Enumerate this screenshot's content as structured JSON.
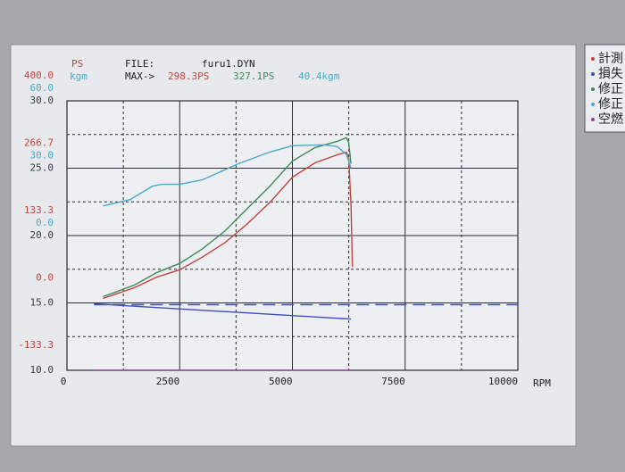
{
  "chart_data": {
    "type": "line",
    "ylabel": "PS",
    "ycolor": "#c0443f",
    "ylim": [
      -133.3,
      400
    ],
    "yticks": [
      {
        "value": 400,
        "label": "400.0"
      },
      266.7,
      133.3,
      {
        "value": 0,
        "label": "0.0"
      },
      -133.3
    ],
    "y2label": "kgm",
    "y2color": "#4aa9c9",
    "y2lim": [
      -60,
      60
    ],
    "y2ticks": [
      {
        "value": 60,
        "label": "60.0"
      },
      {
        "value": 30,
        "label": "30.0"
      },
      {
        "value": 0,
        "label": "0.0"
      }
    ],
    "y3color": "#3a3a44",
    "y3lim": [
      10,
      30
    ],
    "y3ticks": [
      {
        "value": 30,
        "label": "30.0"
      },
      {
        "value": 25,
        "label": "25.0"
      },
      {
        "value": 20,
        "label": "20.0"
      },
      {
        "value": 15,
        "label": "15.0"
      },
      {
        "value": 10,
        "label": "10.0"
      }
    ],
    "y3minor": [
      27.5,
      22.5,
      17.5,
      12.5
    ],
    "xlabel": "RPM",
    "xlim": [
      0,
      10000
    ],
    "xticks": [
      0,
      2500,
      5000,
      7500,
      10000
    ],
    "xminor": [
      1250,
      3750,
      6250,
      8750
    ],
    "grid": true,
    "header": {
      "file_label": "FILE:",
      "file": "furu1.DYN",
      "max_label": "MAX->",
      "max": [
        {
          "text": "298.3PS",
          "color": "#c0443f"
        },
        {
          "text": "327.1PS",
          "color": "#3d8a5e"
        },
        {
          "text": "40.4kgm",
          "color": "#4aa9c9"
        }
      ]
    },
    "series": [
      {
        "name": "計測",
        "color": "#c0443f",
        "axis": "y",
        "x": [
          800,
          1500,
          2000,
          2500,
          3000,
          3500,
          4000,
          4500,
          5000,
          5500,
          6000,
          6200,
          6250,
          6300,
          6330
        ],
        "values": [
          8.9,
          30.2,
          51.5,
          65.8,
          90.6,
          119.1,
          156.4,
          199.1,
          248.8,
          277.3,
          293.3,
          298.3,
          284.3,
          195.5,
          71.1
        ]
      },
      {
        "name": "損失",
        "color": "#3f4fb8",
        "axis": "y",
        "x": [
          600,
          6300
        ],
        "values": [
          -1.8,
          -32
        ]
      },
      {
        "name": "修正",
        "color": "#3d8a5e",
        "axis": "y",
        "x": [
          800,
          1500,
          2000,
          2500,
          3000,
          3500,
          4000,
          4500,
          5000,
          5500,
          6000,
          6200,
          6250,
          6300
        ],
        "values": [
          12.4,
          35.5,
          60.4,
          78.2,
          106.6,
          142.2,
          186.6,
          231.1,
          280.8,
          307.5,
          320,
          327.1,
          316.4,
          275.5
        ]
      },
      {
        "name": "修正",
        "color": "#4aa9c9",
        "axis": "y2",
        "x": [
          800,
          1400,
          1900,
          2100,
          2500,
          3000,
          3800,
          4500,
          5000,
          5700,
          6000,
          6200,
          6300
        ],
        "values": [
          13.2,
          16,
          22,
          22.8,
          22.8,
          24.8,
          32,
          37.2,
          40,
          40.4,
          39.6,
          36,
          30
        ]
      },
      {
        "name": "空燃",
        "color": "#9a3f9a",
        "axis": "y3",
        "x": [
          600,
          6300
        ],
        "values": [
          10,
          10
        ]
      },
      {
        "color": "#3f4fb8",
        "axis": "y3",
        "dashed": true,
        "x": [
          600,
          10000
        ],
        "values": [
          14.87,
          14.87
        ]
      }
    ]
  }
}
